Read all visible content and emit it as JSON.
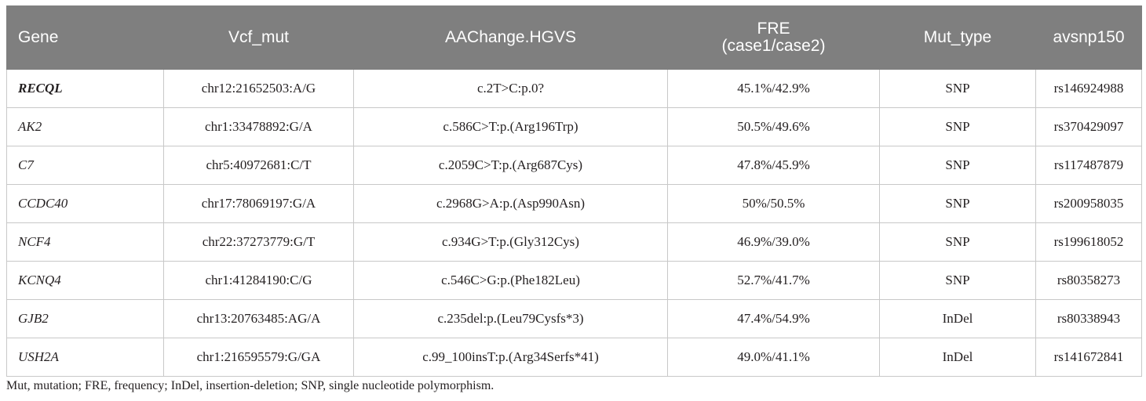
{
  "table": {
    "headers": {
      "gene": "Gene",
      "vcf_mut": "Vcf_mut",
      "aachange": "AAChange.HGVS",
      "fre_line1": "FRE",
      "fre_line2": "(case1/case2)",
      "mut_type": "Mut_type",
      "avsnp": "avsnp150"
    },
    "rows": [
      {
        "gene": "RECQL",
        "vcf_mut": "chr12:21652503:A/G",
        "aachange": "c.2T>C:p.0?",
        "fre": "45.1%/42.9%",
        "mut_type": "SNP",
        "avsnp": "rs146924988"
      },
      {
        "gene": "AK2",
        "vcf_mut": "chr1:33478892:G/A",
        "aachange": "c.586C>T:p.(Arg196Trp)",
        "fre": "50.5%/49.6%",
        "mut_type": "SNP",
        "avsnp": "rs370429097"
      },
      {
        "gene": "C7",
        "vcf_mut": "chr5:40972681:C/T",
        "aachange": "c.2059C>T:p.(Arg687Cys)",
        "fre": "47.8%/45.9%",
        "mut_type": "SNP",
        "avsnp": "rs117487879"
      },
      {
        "gene": "CCDC40",
        "vcf_mut": "chr17:78069197:G/A",
        "aachange": "c.2968G>A:p.(Asp990Asn)",
        "fre": "50%/50.5%",
        "mut_type": "SNP",
        "avsnp": "rs200958035"
      },
      {
        "gene": "NCF4",
        "vcf_mut": "chr22:37273779:G/T",
        "aachange": "c.934G>T:p.(Gly312Cys)",
        "fre": "46.9%/39.0%",
        "mut_type": "SNP",
        "avsnp": "rs199618052"
      },
      {
        "gene": "KCNQ4",
        "vcf_mut": "chr1:41284190:C/G",
        "aachange": "c.546C>G:p.(Phe182Leu)",
        "fre": "52.7%/41.7%",
        "mut_type": "SNP",
        "avsnp": "rs80358273"
      },
      {
        "gene": "GJB2",
        "vcf_mut": "chr13:20763485:AG/A",
        "aachange": "c.235del:p.(Leu79Cysfs*3)",
        "fre": "47.4%/54.9%",
        "mut_type": "InDel",
        "avsnp": "rs80338943"
      },
      {
        "gene": "USH2A",
        "vcf_mut": "chr1:216595579:G/GA",
        "aachange": "c.99_100insT:p.(Arg34Serfs*41)",
        "fre": "49.0%/41.1%",
        "mut_type": "InDel",
        "avsnp": "rs141672841"
      }
    ]
  },
  "footnote": "Mut, mutation; FRE, frequency; InDel, insertion-deletion; SNP, single nucleotide polymorphism."
}
